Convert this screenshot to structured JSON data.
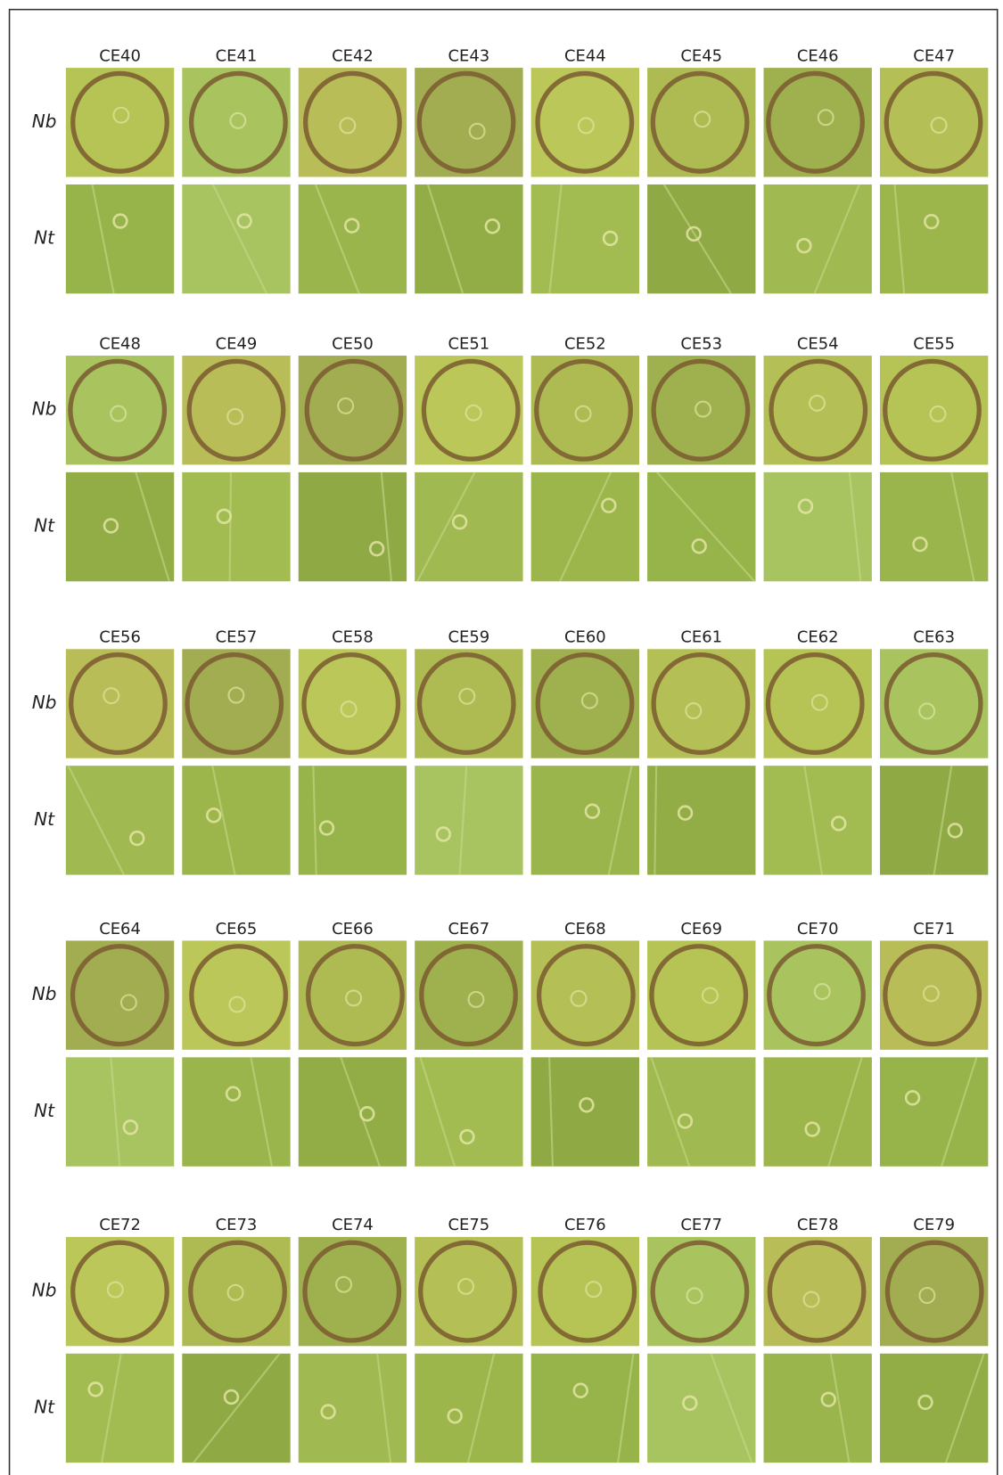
{
  "row_labels": [
    "Nb",
    "Nt"
  ],
  "groups": [
    {
      "columns": [
        "CE40",
        "CE41",
        "CE42",
        "CE43",
        "CE44",
        "CE45",
        "CE46",
        "CE47"
      ]
    },
    {
      "columns": [
        "CE48",
        "CE49",
        "CE50",
        "CE51",
        "CE52",
        "CE53",
        "CE54",
        "CE55"
      ]
    },
    {
      "columns": [
        "CE56",
        "CE57",
        "CE58",
        "CE59",
        "CE60",
        "CE61",
        "CE62",
        "CE63"
      ]
    },
    {
      "columns": [
        "CE64",
        "CE65",
        "CE66",
        "CE67",
        "CE68",
        "CE69",
        "CE70",
        "CE71"
      ]
    },
    {
      "columns": [
        "CE72",
        "CE73",
        "CE74",
        "CE75",
        "CE76",
        "CE77",
        "CE78",
        "CE79"
      ]
    }
  ]
}
